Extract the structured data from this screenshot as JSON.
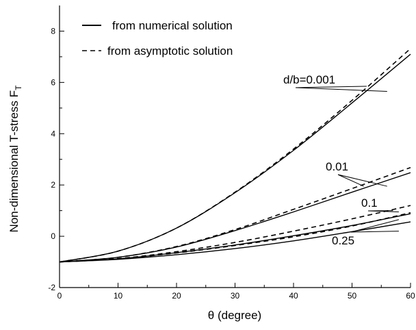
{
  "chart_data": {
    "type": "line",
    "title": "",
    "xlabel": "θ (degree)",
    "ylabel": "Non-dimensional T-stress F",
    "ylabel_subscript": "T",
    "xlim": [
      0,
      60
    ],
    "ylim": [
      -2,
      9
    ],
    "xticks_major": [
      0,
      10,
      20,
      30,
      40,
      50,
      60
    ],
    "xticks_minor": [
      5,
      15,
      25,
      35,
      45,
      55
    ],
    "yticks_major": [
      -2,
      0,
      2,
      4,
      6,
      8
    ],
    "yticks_minor": [
      -1,
      1,
      3,
      5,
      7
    ],
    "grid": false,
    "legend_position": "top-left",
    "legend": [
      {
        "label": "from numerical solution",
        "style": "solid"
      },
      {
        "label": "from asymptotic solution",
        "style": "dashed"
      }
    ],
    "series": [
      {
        "d_over_b": 0.001,
        "style": "solid",
        "x": [
          0,
          10,
          20,
          30,
          40,
          50,
          60
        ],
        "y": [
          -1.0,
          -0.58,
          0.32,
          1.7,
          3.35,
          5.2,
          7.1
        ]
      },
      {
        "d_over_b": 0.001,
        "style": "dashed",
        "x": [
          0,
          10,
          20,
          30,
          40,
          50,
          60
        ],
        "y": [
          -1.0,
          -0.58,
          0.32,
          1.72,
          3.4,
          5.3,
          7.32
        ]
      },
      {
        "d_over_b": 0.01,
        "style": "solid",
        "x": [
          0,
          10,
          20,
          30,
          40,
          50,
          60
        ],
        "y": [
          -1.0,
          -0.82,
          -0.42,
          0.22,
          0.95,
          1.72,
          2.48
        ]
      },
      {
        "d_over_b": 0.01,
        "style": "dashed",
        "x": [
          0,
          10,
          20,
          30,
          40,
          50,
          60
        ],
        "y": [
          -1.0,
          -0.82,
          -0.4,
          0.26,
          1.05,
          1.86,
          2.68
        ]
      },
      {
        "d_over_b": 0.1,
        "style": "solid",
        "x": [
          0,
          10,
          20,
          30,
          40,
          50,
          60
        ],
        "y": [
          -1.0,
          -0.88,
          -0.64,
          -0.34,
          0.02,
          0.42,
          0.88
        ]
      },
      {
        "d_over_b": 0.1,
        "style": "dashed",
        "x": [
          0,
          10,
          20,
          30,
          40,
          50,
          60
        ],
        "y": [
          -1.0,
          -0.87,
          -0.6,
          -0.24,
          0.2,
          0.68,
          1.2
        ]
      },
      {
        "d_over_b": 0.25,
        "style": "solid",
        "x": [
          0,
          10,
          20,
          30,
          40,
          50,
          60
        ],
        "y": [
          -1.0,
          -0.9,
          -0.72,
          -0.48,
          -0.18,
          0.18,
          0.56
        ]
      },
      {
        "d_over_b": 0.25,
        "style": "dashed",
        "x": [
          0,
          10,
          20,
          30,
          40,
          50,
          60
        ],
        "y": [
          -1.0,
          -0.88,
          -0.65,
          -0.36,
          -0.02,
          0.4,
          0.92
        ]
      }
    ],
    "annotations": [
      {
        "text": "d/b=0.001",
        "pointer": [
          [
            52.5,
            5.85
          ],
          [
            56,
            5.65
          ]
        ]
      },
      {
        "text": "0.01",
        "pointer": [
          [
            52,
            1.95
          ],
          [
            56,
            1.95
          ]
        ]
      },
      {
        "text": "0.1",
        "pointer": [
          [
            57,
            1.0
          ],
          [
            58,
            0.95
          ]
        ]
      },
      {
        "text": "0.25",
        "pointer": [
          [
            58,
            0.2
          ],
          [
            58,
            0.65
          ]
        ]
      }
    ]
  }
}
